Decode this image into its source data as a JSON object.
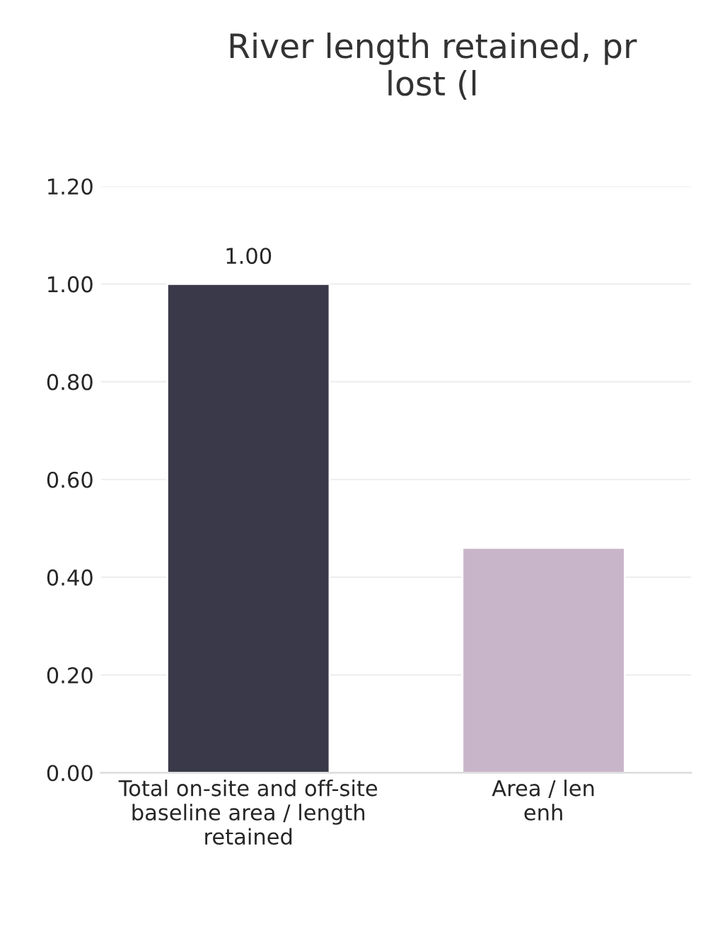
{
  "chart_data": {
    "type": "bar",
    "title": "River length retained, pr\nlost (l",
    "categories": [
      "Total on-site and off-site\nbaseline area / length\nretained",
      "Area / len\nenh"
    ],
    "values": [
      1.0,
      0.46
    ],
    "colors": [
      "#3a3949",
      "#c9b5c9"
    ],
    "value_labels": [
      "1.00",
      null
    ],
    "ylim": [
      0,
      1.2
    ],
    "yticks": [
      {
        "value": 0,
        "label": "0.00"
      },
      {
        "value": 0.2,
        "label": "0.20"
      },
      {
        "value": 0.4,
        "label": "0.40"
      },
      {
        "value": 0.6,
        "label": "0.60"
      },
      {
        "value": 0.8,
        "label": "0.80"
      },
      {
        "value": 1.0,
        "label": "1.00"
      },
      {
        "value": 1.2,
        "label": "1.20"
      }
    ],
    "grid": "y",
    "legend": false
  }
}
